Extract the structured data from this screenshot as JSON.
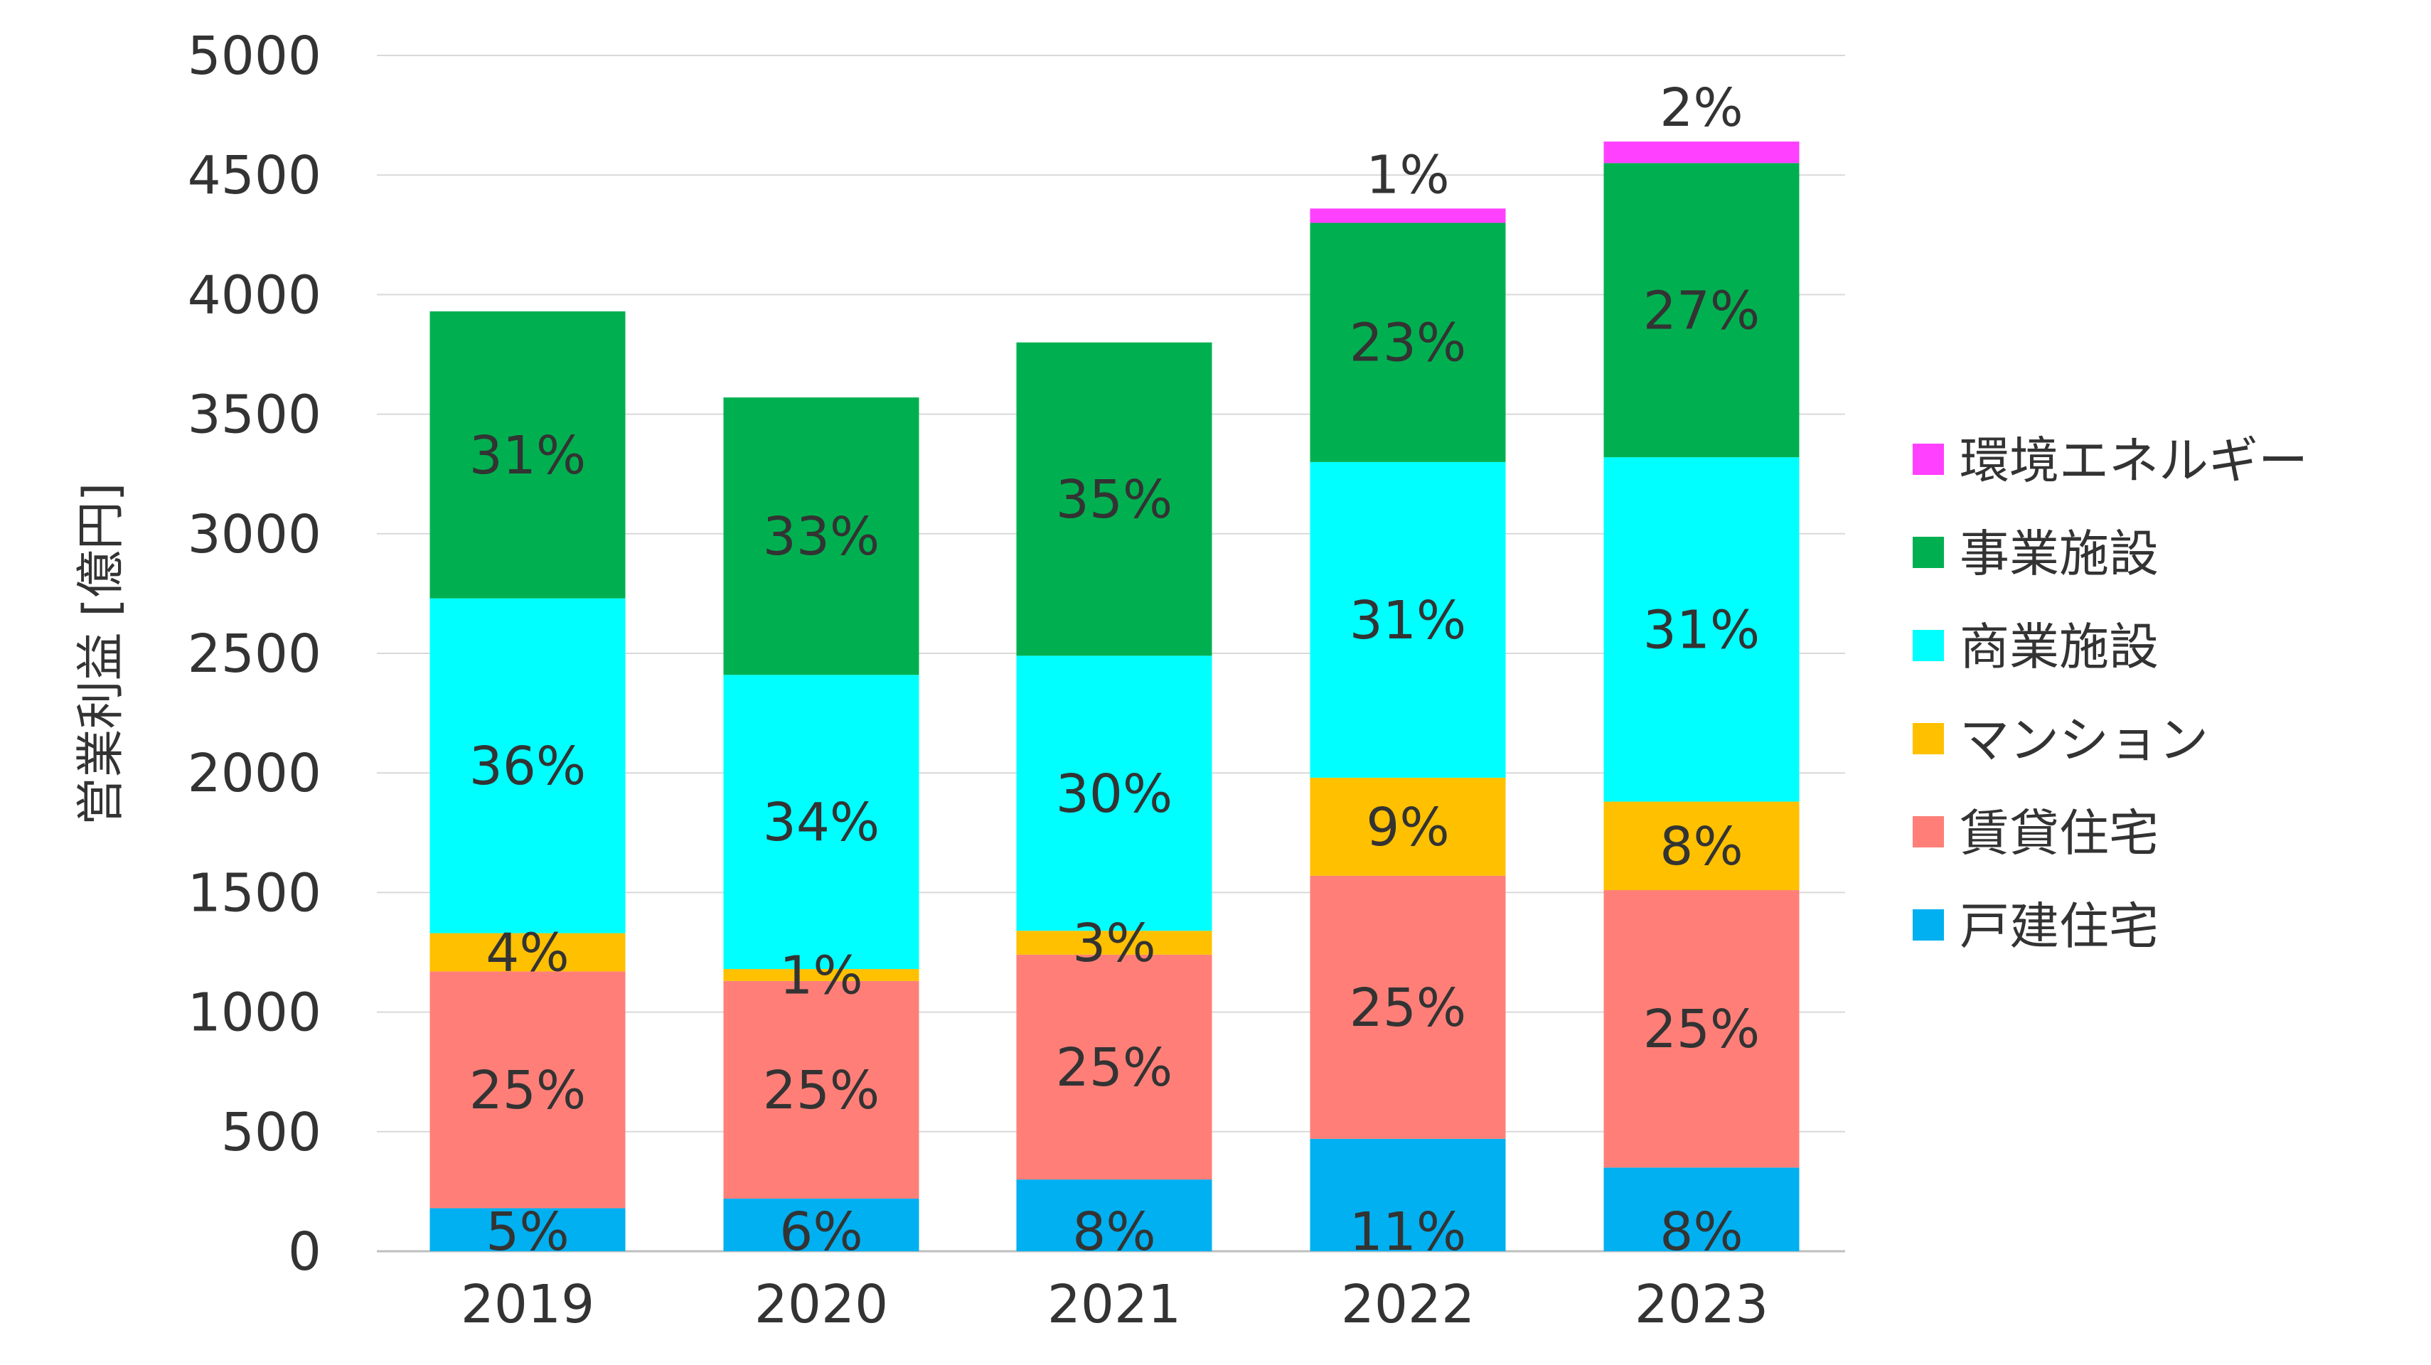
{
  "chart_data": {
    "type": "bar",
    "stacked": true,
    "ylabel": "営業利益 [億円]",
    "ylim": [
      0,
      5000
    ],
    "yticks": [
      0,
      500,
      1000,
      1500,
      2000,
      2500,
      3000,
      3500,
      4000,
      4500,
      5000
    ],
    "categories": [
      "2019",
      "2020",
      "2021",
      "2022",
      "2023"
    ],
    "grid": true,
    "legend_position": "right",
    "series": [
      {
        "name": "戸建住宅",
        "color": "#00B0F0",
        "values": [
          180,
          220,
          300,
          470,
          350
        ],
        "labels": [
          "5%",
          "6%",
          "8%",
          "11%",
          "8%"
        ]
      },
      {
        "name": "賃貸住宅",
        "color": "#FF7F78",
        "values": [
          990,
          910,
          940,
          1100,
          1160
        ],
        "labels": [
          "25%",
          "25%",
          "25%",
          "25%",
          "25%"
        ]
      },
      {
        "name": "マンション",
        "color": "#FFC000",
        "values": [
          160,
          50,
          100,
          410,
          370
        ],
        "labels": [
          "4%",
          "1%",
          "3%",
          "9%",
          "8%"
        ]
      },
      {
        "name": "商業施設",
        "color": "#00FFFF",
        "values": [
          1400,
          1230,
          1150,
          1320,
          1440
        ],
        "labels": [
          "36%",
          "34%",
          "30%",
          "31%",
          "31%"
        ]
      },
      {
        "name": "事業施設",
        "color": "#00B050",
        "values": [
          1200,
          1160,
          1310,
          1000,
          1230
        ],
        "labels": [
          "31%",
          "33%",
          "35%",
          "23%",
          "27%"
        ]
      },
      {
        "name": "環境エネルギー",
        "color": "#FF40FF",
        "values": [
          0,
          0,
          0,
          60,
          90
        ],
        "labels": [
          "",
          "",
          "",
          "1%",
          "2%"
        ]
      }
    ]
  }
}
